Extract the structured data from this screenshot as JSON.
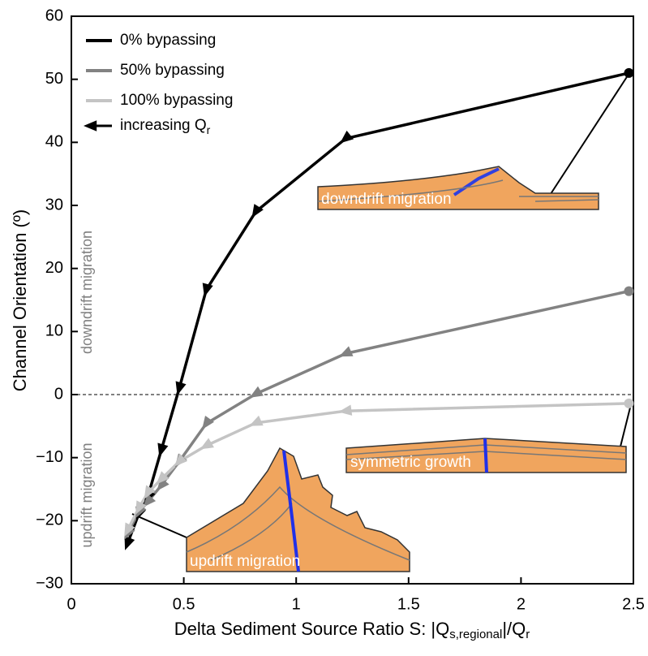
{
  "chart_data": {
    "type": "line",
    "ylabel": "Channel Orientation (º)",
    "xlabel_parts": [
      {
        "text": "Delta Sediment Source Ratio S: |Q"
      },
      {
        "sub": "s,regional"
      },
      {
        "text": "|/Q"
      },
      {
        "sub": "r"
      }
    ],
    "xlim": [
      0,
      2.5
    ],
    "ylim": [
      -30,
      60
    ],
    "xticks": [
      0,
      0.5,
      1,
      1.5,
      2,
      2.5
    ],
    "yticks": [
      {
        "value": -30,
        "label": "−30"
      },
      {
        "value": -20,
        "label": "−20"
      },
      {
        "value": -10,
        "label": "−10"
      },
      0,
      10,
      20,
      30,
      40,
      50,
      60
    ],
    "reference_line": 0,
    "legend": "upper left",
    "legend_arrow_label": {
      "text": "increasing Q",
      "sub": "r"
    },
    "series": [
      {
        "name": "0% bypassing",
        "color": "#000000",
        "x": [
          2.48,
          1.22,
          0.82,
          0.6,
          0.48,
          0.4,
          0.34,
          0.3,
          0.25
        ],
        "values": [
          51,
          40.6,
          29,
          16.6,
          1,
          -8.8,
          -16.2,
          -18.9,
          -23.6
        ]
      },
      {
        "name": "50% bypassing",
        "color": "#828282",
        "x": [
          2.48,
          1.22,
          0.82,
          0.6,
          0.48,
          0.4,
          0.34,
          0.3,
          0.25
        ],
        "values": [
          16.4,
          6.5,
          0.1,
          -4.6,
          -10.6,
          -14.4,
          -17,
          -18.6,
          -22
        ]
      },
      {
        "name": "100% bypassing",
        "color": "#c4c4c4",
        "x": [
          2.48,
          1.22,
          0.82,
          0.6,
          0.48,
          0.4,
          0.34,
          0.3,
          0.25
        ],
        "values": [
          -1.4,
          -2.6,
          -4.5,
          -8.1,
          -10.6,
          -13.4,
          -15.6,
          -18,
          -21.5
        ]
      }
    ],
    "side_labels": [
      "downdrift migration",
      "updrift migration"
    ],
    "inset_labels": [
      "downdrift migration",
      "symmetric growth",
      "updrift migration"
    ]
  }
}
